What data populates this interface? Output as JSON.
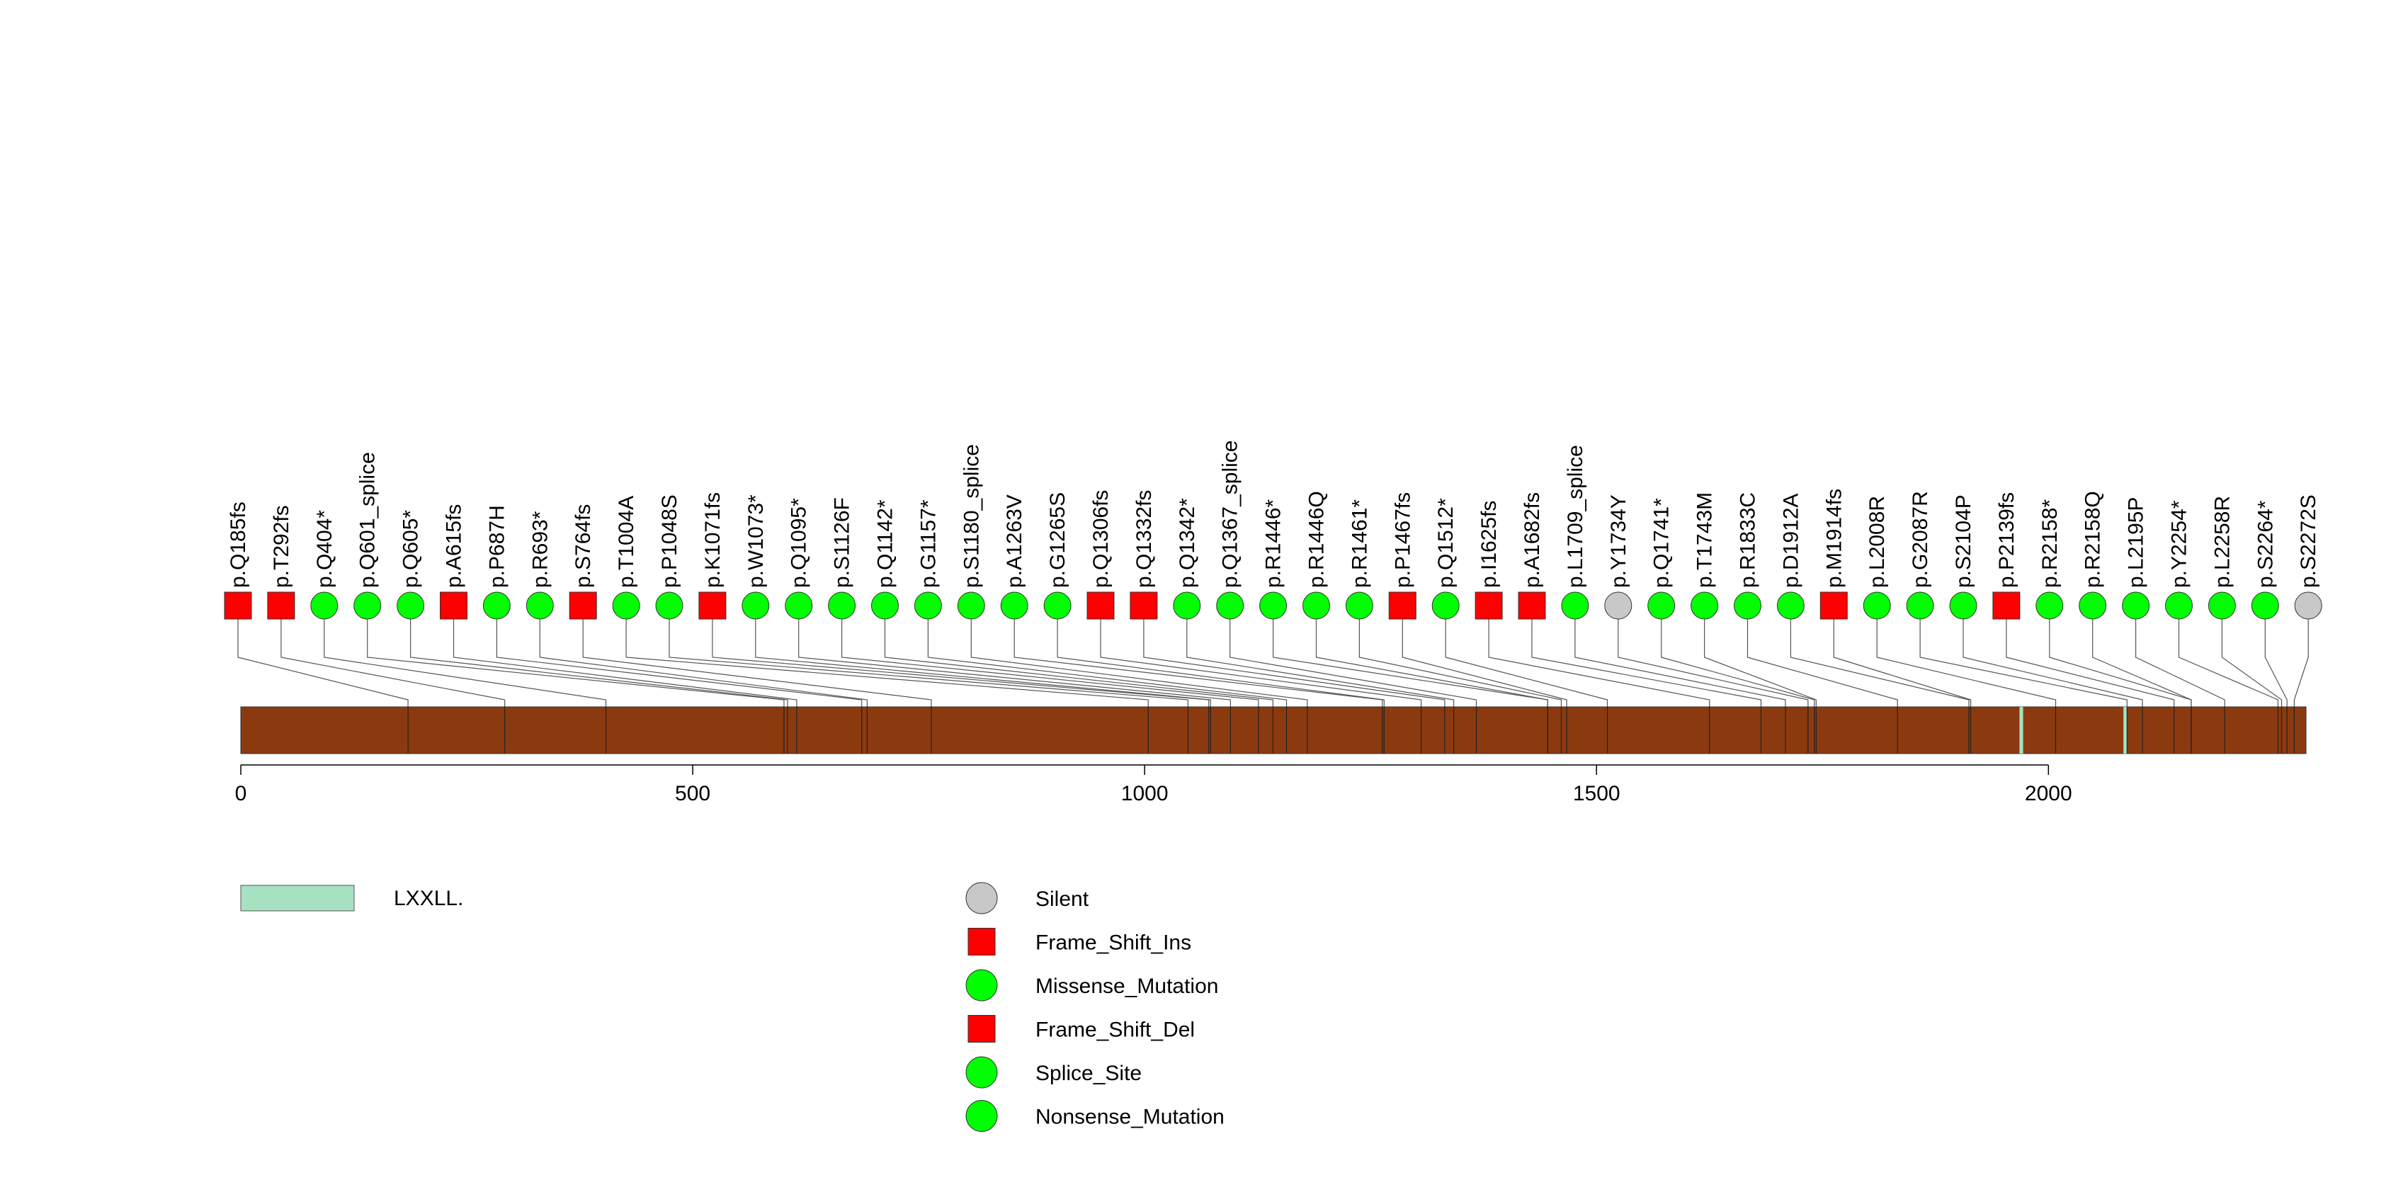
{
  "chart_data": {
    "type": "lollipop",
    "title": "",
    "xlabel": "",
    "ylabel": "",
    "xlim": [
      0,
      2285
    ],
    "x_ticks": [
      0,
      500,
      1000,
      1500,
      2000
    ],
    "x_tick_labels": [
      "0",
      "500",
      "1000",
      "1500",
      "2000"
    ],
    "protein_length": 2285,
    "domains": [
      {
        "name": "LXXLL.",
        "start": 1968,
        "end": 1972
      },
      {
        "name": "LXXLL.",
        "start": 2083,
        "end": 2087
      }
    ],
    "mutations": [
      {
        "label": "p.Q185fs",
        "position": 185,
        "type": "Frame_Shift_Ins"
      },
      {
        "label": "p.T292fs",
        "position": 292,
        "type": "Frame_Shift_Ins"
      },
      {
        "label": "p.Q404*",
        "position": 404,
        "type": "Nonsense_Mutation"
      },
      {
        "label": "p.Q601_splice",
        "position": 601,
        "type": "Splice_Site"
      },
      {
        "label": "p.Q605*",
        "position": 605,
        "type": "Nonsense_Mutation"
      },
      {
        "label": "p.A615fs",
        "position": 615,
        "type": "Frame_Shift_Del"
      },
      {
        "label": "p.P687H",
        "position": 687,
        "type": "Missense_Mutation"
      },
      {
        "label": "p.R693*",
        "position": 693,
        "type": "Nonsense_Mutation"
      },
      {
        "label": "p.S764fs",
        "position": 764,
        "type": "Frame_Shift_Del"
      },
      {
        "label": "p.T1004A",
        "position": 1004,
        "type": "Missense_Mutation"
      },
      {
        "label": "p.P1048S",
        "position": 1048,
        "type": "Missense_Mutation"
      },
      {
        "label": "p.K1071fs",
        "position": 1071,
        "type": "Frame_Shift_Del"
      },
      {
        "label": "p.W1073*",
        "position": 1073,
        "type": "Nonsense_Mutation"
      },
      {
        "label": "p.Q1095*",
        "position": 1095,
        "type": "Nonsense_Mutation"
      },
      {
        "label": "p.S1126F",
        "position": 1126,
        "type": "Missense_Mutation"
      },
      {
        "label": "p.Q1142*",
        "position": 1142,
        "type": "Nonsense_Mutation"
      },
      {
        "label": "p.G1157*",
        "position": 1157,
        "type": "Nonsense_Mutation"
      },
      {
        "label": "p.S1180_splice",
        "position": 1180,
        "type": "Splice_Site"
      },
      {
        "label": "p.A1263V",
        "position": 1263,
        "type": "Missense_Mutation"
      },
      {
        "label": "p.G1265S",
        "position": 1265,
        "type": "Missense_Mutation"
      },
      {
        "label": "p.Q1306fs",
        "position": 1306,
        "type": "Frame_Shift_Del"
      },
      {
        "label": "p.Q1332fs",
        "position": 1332,
        "type": "Frame_Shift_Del"
      },
      {
        "label": "p.Q1342*",
        "position": 1342,
        "type": "Nonsense_Mutation"
      },
      {
        "label": "p.Q1367_splice",
        "position": 1367,
        "type": "Splice_Site"
      },
      {
        "label": "p.R1446*",
        "position": 1446,
        "type": "Nonsense_Mutation"
      },
      {
        "label": "p.R1446Q",
        "position": 1446,
        "type": "Missense_Mutation"
      },
      {
        "label": "p.R1461*",
        "position": 1461,
        "type": "Nonsense_Mutation"
      },
      {
        "label": "p.P1467fs",
        "position": 1467,
        "type": "Frame_Shift_Del"
      },
      {
        "label": "p.Q1512*",
        "position": 1512,
        "type": "Nonsense_Mutation"
      },
      {
        "label": "p.I1625fs",
        "position": 1625,
        "type": "Frame_Shift_Del"
      },
      {
        "label": "p.A1682fs",
        "position": 1682,
        "type": "Frame_Shift_Del"
      },
      {
        "label": "p.L1709_splice",
        "position": 1709,
        "type": "Splice_Site"
      },
      {
        "label": "p.Y1734Y",
        "position": 1734,
        "type": "Silent"
      },
      {
        "label": "p.Q1741*",
        "position": 1741,
        "type": "Nonsense_Mutation"
      },
      {
        "label": "p.T1743M",
        "position": 1743,
        "type": "Missense_Mutation"
      },
      {
        "label": "p.R1833C",
        "position": 1833,
        "type": "Missense_Mutation"
      },
      {
        "label": "p.D1912A",
        "position": 1912,
        "type": "Missense_Mutation"
      },
      {
        "label": "p.M1914fs",
        "position": 1914,
        "type": "Frame_Shift_Del"
      },
      {
        "label": "p.L2008R",
        "position": 2008,
        "type": "Missense_Mutation"
      },
      {
        "label": "p.G2087R",
        "position": 2087,
        "type": "Missense_Mutation"
      },
      {
        "label": "p.S2104P",
        "position": 2104,
        "type": "Missense_Mutation"
      },
      {
        "label": "p.P2139fs",
        "position": 2139,
        "type": "Frame_Shift_Del"
      },
      {
        "label": "p.R2158*",
        "position": 2158,
        "type": "Nonsense_Mutation"
      },
      {
        "label": "p.R2158Q",
        "position": 2158,
        "type": "Missense_Mutation"
      },
      {
        "label": "p.L2195P",
        "position": 2195,
        "type": "Missense_Mutation"
      },
      {
        "label": "p.Y2254*",
        "position": 2254,
        "type": "Nonsense_Mutation"
      },
      {
        "label": "p.L2258R",
        "position": 2258,
        "type": "Missense_Mutation"
      },
      {
        "label": "p.S2264*",
        "position": 2264,
        "type": "Nonsense_Mutation"
      },
      {
        "label": "p.S2272S",
        "position": 2272,
        "type": "Silent"
      }
    ],
    "mutation_types": [
      {
        "name": "Silent",
        "shape": "circle",
        "color": "#c8c8c8"
      },
      {
        "name": "Frame_Shift_Ins",
        "shape": "square",
        "color": "#ff0000"
      },
      {
        "name": "Missense_Mutation",
        "shape": "circle",
        "color": "#00ff00"
      },
      {
        "name": "Frame_Shift_Del",
        "shape": "square",
        "color": "#ff0000"
      },
      {
        "name": "Splice_Site",
        "shape": "circle",
        "color": "#00ff00"
      },
      {
        "name": "Nonsense_Mutation",
        "shape": "circle",
        "color": "#00ff00"
      }
    ],
    "domain_legend": [
      {
        "name": "LXXLL.",
        "color": "#a6e1c1"
      }
    ],
    "protein_color": "#8b3a10"
  }
}
